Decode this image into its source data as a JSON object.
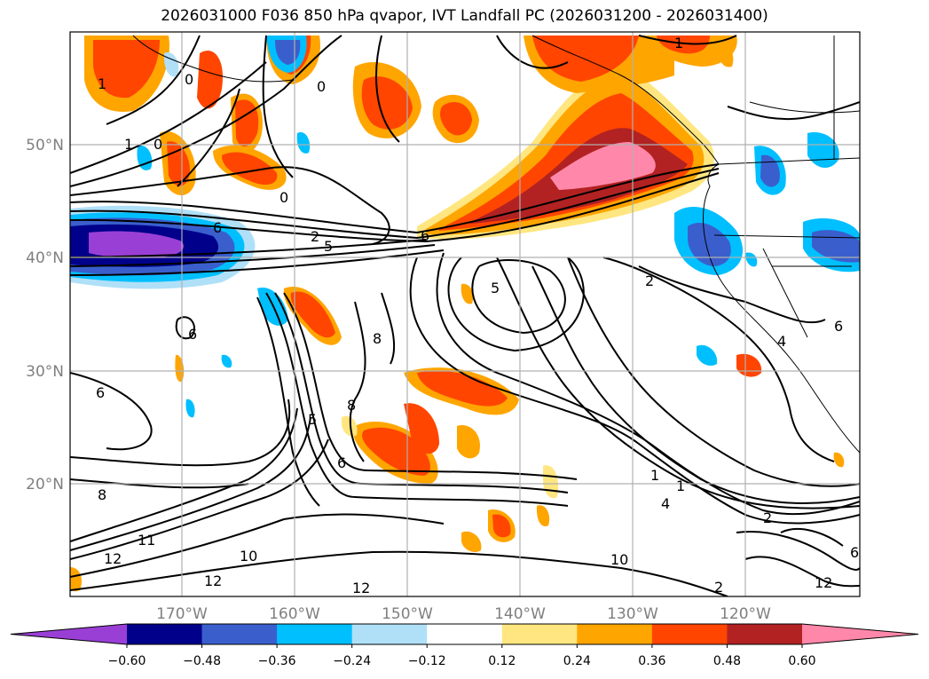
{
  "title": "2026031000 F036 850 hPa qvapor, IVT Landfall PC (2026031200 - 2026031400)",
  "map": {
    "lat_labels": [
      "50°N",
      "40°N",
      "30°N",
      "20°N"
    ],
    "lon_labels": [
      "170°W",
      "160°W",
      "150°W",
      "140°W",
      "130°W",
      "120°W"
    ],
    "contour_labels": [
      "1",
      "1",
      "0",
      "0",
      "0",
      "1",
      "0",
      "2",
      "5",
      "6",
      "6",
      "2",
      "5",
      "8",
      "6",
      "6",
      "8",
      "5",
      "8",
      "6",
      "10",
      "12",
      "11",
      "12",
      "10",
      "12",
      "2",
      "4",
      "1",
      "1",
      "12",
      "6",
      "4",
      "6"
    ]
  },
  "colorbar": {
    "ticks": [
      "−0.60",
      "−0.48",
      "−0.36",
      "−0.24",
      "−0.12",
      "0.12",
      "0.24",
      "0.36",
      "0.48",
      "0.60"
    ],
    "colors": [
      "#9a3fd6",
      "#00008b",
      "#3a5fcd",
      "#00bfff",
      "#b0e0f8",
      "#ffffff",
      "#ffe680",
      "#ffa500",
      "#ff4500",
      "#b22222",
      "#ff88aa"
    ]
  },
  "legend_colors": {
    "neg_extend": "#9a3fd6",
    "pos_extend": "#ff88aa"
  }
}
